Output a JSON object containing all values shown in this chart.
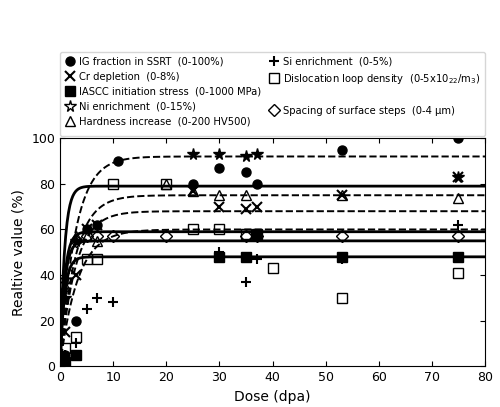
{
  "xlabel": "Dose (dpa)",
  "ylabel": "Realtive value (%)",
  "xlim": [
    0,
    80
  ],
  "ylim": [
    0,
    100
  ],
  "xticks": [
    0,
    10,
    20,
    30,
    40,
    50,
    60,
    70,
    80
  ],
  "yticks": [
    0,
    20,
    40,
    60,
    80,
    100
  ],
  "data_IG": {
    "x": [
      0,
      1,
      3,
      5,
      7,
      11,
      25,
      30,
      35,
      37,
      53,
      75
    ],
    "y": [
      0,
      5,
      20,
      60,
      62,
      90,
      80,
      87,
      85,
      80,
      95,
      100
    ]
  },
  "data_IASCC": {
    "x": [
      0,
      0.5,
      1,
      3,
      30,
      35,
      37,
      53,
      75
    ],
    "y": [
      0,
      0,
      2,
      5,
      48,
      48,
      58,
      48,
      48
    ]
  },
  "data_hardness": {
    "x": [
      0,
      1,
      3,
      5,
      7,
      20,
      25,
      30,
      35,
      53,
      75
    ],
    "y": [
      0,
      35,
      57,
      57,
      55,
      80,
      77,
      75,
      75,
      75,
      74
    ]
  },
  "data_disloc": {
    "x": [
      0,
      1,
      3,
      5,
      7,
      10,
      20,
      25,
      30,
      35,
      40,
      53,
      75
    ],
    "y": [
      0,
      8,
      13,
      47,
      47,
      80,
      80,
      60,
      60,
      58,
      43,
      30,
      41
    ]
  },
  "data_spacing": {
    "x": [
      0,
      1,
      3,
      5,
      7,
      10,
      20,
      35,
      37,
      53,
      75
    ],
    "y": [
      0,
      38,
      55,
      57,
      57,
      57,
      57,
      57,
      57,
      57,
      57
    ]
  },
  "data_Cr": {
    "x": [
      0,
      1,
      3,
      5,
      7,
      25,
      30,
      35,
      37,
      53,
      75
    ],
    "y": [
      0,
      15,
      40,
      60,
      62,
      77,
      70,
      69,
      70,
      75,
      83
    ]
  },
  "data_Ni": {
    "x": [
      0,
      1,
      3,
      25,
      30,
      35,
      37,
      75
    ],
    "y": [
      0,
      30,
      55,
      93,
      93,
      92,
      93,
      83
    ]
  },
  "data_Si": {
    "x": [
      0,
      1,
      3,
      5,
      7,
      10,
      30,
      35,
      37,
      53,
      75
    ],
    "y": [
      0,
      5,
      10,
      25,
      30,
      28,
      50,
      37,
      47,
      47,
      62
    ]
  },
  "solid_curves": [
    {
      "sat": 79,
      "k": 1.2
    },
    {
      "sat": 59,
      "k": 1.2
    },
    {
      "sat": 55,
      "k": 1.2
    },
    {
      "sat": 48,
      "k": 1.2
    }
  ],
  "dash_curves": [
    {
      "sat": 92,
      "k": 0.35
    },
    {
      "sat": 75,
      "k": 0.35
    },
    {
      "sat": 68,
      "k": 0.35
    },
    {
      "sat": 60,
      "k": 0.3
    }
  ],
  "legend_left": [
    {
      "marker": "o",
      "filled": true,
      "label": "IG fraction in SSRT  (0-100%)"
    },
    {
      "marker": "s",
      "filled": true,
      "label": "IASCC initiation stress  (0-1000 MPa)"
    },
    {
      "marker": "^",
      "filled": false,
      "label": "Hardness increase  (0-200 HV500)"
    },
    {
      "marker": "s",
      "filled": false,
      "label": "Dislocation loop density  (0-5x10$_{22}$/m$_3$)"
    },
    {
      "marker": "D",
      "filled": false,
      "label": "Spacing of surface steps  (0-4 μm)"
    }
  ],
  "legend_right": [
    {
      "marker": "x",
      "filled": false,
      "label": "Cr depletion  (0-8%)"
    },
    {
      "marker": "*",
      "filled": false,
      "label": "Ni enrichment  (0-15%)"
    },
    {
      "marker": "+",
      "filled": false,
      "label": "Si enrichment  (0-5%)"
    }
  ],
  "figsize": [
    5.0,
    4.07
  ],
  "dpi": 100
}
